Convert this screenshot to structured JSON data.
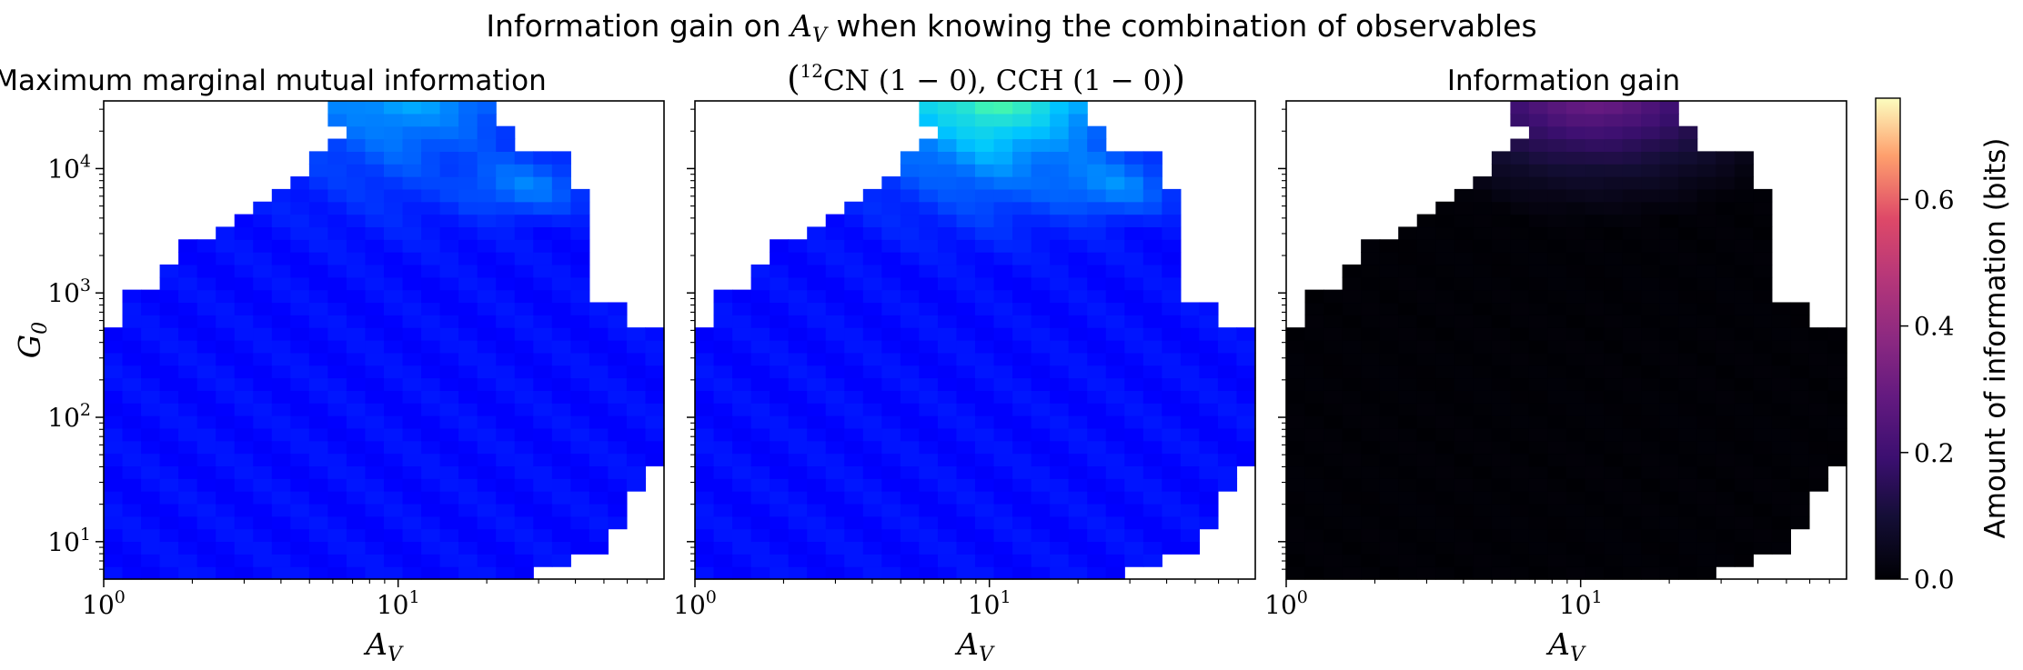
{
  "suptitle": {
    "pre": "Information gain on ",
    "var_main": "A",
    "var_sub": "V",
    "post": " when knowing the combination of observables"
  },
  "colors": {
    "low_info_mid": "#0a1bf0",
    "high_info_mid": "#49f0a0",
    "frame": "#000000"
  },
  "chart_data": [
    {
      "type": "heatmap",
      "title": "Maximum marginal mutual information",
      "xlabel": {
        "main": "A",
        "sub": "V"
      },
      "ylabel": {
        "main": "G",
        "sub": "0"
      },
      "xscale": "log",
      "yscale": "log",
      "xlim": [
        1,
        80
      ],
      "ylim": [
        5,
        35000
      ],
      "xticks": [
        {
          "value": 1,
          "base": "10",
          "exp": "0"
        },
        {
          "value": 10,
          "base": "10",
          "exp": "1"
        }
      ],
      "yticks": [
        {
          "value": 10,
          "base": "10",
          "exp": "1"
        },
        {
          "value": 100,
          "base": "10",
          "exp": "2"
        },
        {
          "value": 1000,
          "base": "10",
          "exp": "3"
        },
        {
          "value": 10000,
          "base": "10",
          "exp": "4"
        }
      ],
      "colormap": "jet",
      "grid": false
    },
    {
      "type": "heatmap",
      "title": {
        "prefix_sup": "12",
        "mol1": "CN",
        "trans1": "(1 − 0)",
        "sep": ", ",
        "mol2": "CCH",
        "trans2": "(1 − 0)"
      },
      "xlabel": {
        "main": "A",
        "sub": "V"
      },
      "xscale": "log",
      "yscale": "log",
      "xlim": [
        1,
        80
      ],
      "ylim": [
        5,
        35000
      ],
      "xticks": [
        {
          "value": 1,
          "base": "10",
          "exp": "0"
        },
        {
          "value": 10,
          "base": "10",
          "exp": "1"
        }
      ],
      "colormap": "jet",
      "grid": false
    },
    {
      "type": "heatmap",
      "title": "Information gain",
      "xlabel": {
        "main": "A",
        "sub": "V"
      },
      "xscale": "log",
      "yscale": "log",
      "xlim": [
        1,
        80
      ],
      "ylim": [
        5,
        35000
      ],
      "xticks": [
        {
          "value": 1,
          "base": "10",
          "exp": "0"
        },
        {
          "value": 10,
          "base": "10",
          "exp": "1"
        }
      ],
      "colormap": "magma",
      "grid": false
    }
  ],
  "colorbar": {
    "label": "Amount of information (bits)",
    "range": [
      0,
      0.76
    ],
    "ticks": [
      {
        "value": 0.0,
        "label": "0.0"
      },
      {
        "value": 0.2,
        "label": "0.2"
      },
      {
        "value": 0.4,
        "label": "0.4"
      },
      {
        "value": 0.6,
        "label": "0.6"
      }
    ],
    "colormap": "magma"
  }
}
